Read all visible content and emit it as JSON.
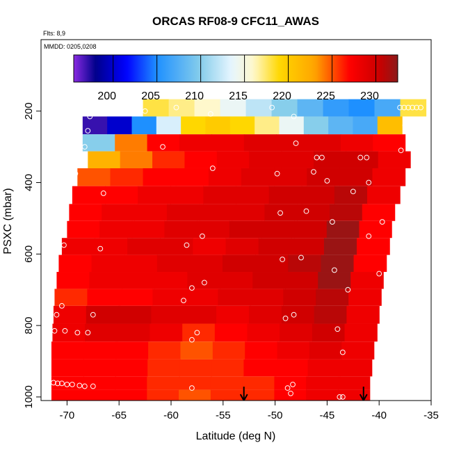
{
  "chart_data": {
    "type": "heatmap",
    "title": "ORCAS RF08-9 CFC11_AWAS",
    "notes": [
      "Flts: 8,9",
      "MMDD: 0205,0208"
    ],
    "xlabel": "Latitude (deg N)",
    "ylabel": "PSXC (mbar)",
    "xlim": [
      -72.5,
      -35
    ],
    "ylim": [
      1010,
      0
    ],
    "y_reversed": true,
    "xticks": [
      -70,
      -65,
      -60,
      -55,
      -50,
      -45,
      -40,
      -35
    ],
    "yticks": [
      200,
      400,
      600,
      800,
      1000
    ],
    "colorbar": {
      "range": [
        195.5,
        232.5
      ],
      "ticks": [
        200,
        205,
        210,
        215,
        220,
        225,
        230
      ],
      "palette_stops": [
        {
          "v": 195.5,
          "c": "#8a2be2"
        },
        {
          "v": 198.0,
          "c": "#00008b"
        },
        {
          "v": 201.5,
          "c": "#0000ff"
        },
        {
          "v": 205.0,
          "c": "#1e90ff"
        },
        {
          "v": 210.0,
          "c": "#87ceeb"
        },
        {
          "v": 213.5,
          "c": "#e6f5ff"
        },
        {
          "v": 216.0,
          "c": "#fff8cc"
        },
        {
          "v": 219.0,
          "c": "#ffd700"
        },
        {
          "v": 223.0,
          "c": "#ffa500"
        },
        {
          "v": 227.0,
          "c": "#ff0000"
        },
        {
          "v": 230.5,
          "c": "#c80000"
        },
        {
          "v": 232.5,
          "c": "#8b1a1a"
        }
      ]
    },
    "bands": [
      {
        "p": 190,
        "lat0": -62.7,
        "lat1": -35.5,
        "values": [
          218,
          217,
          216,
          214,
          212,
          210,
          208,
          206,
          205,
          207,
          218
        ]
      },
      {
        "p": 240,
        "lat0": -68.5,
        "lat1": -37.8,
        "values": [
          197,
          200,
          205,
          213,
          219,
          220,
          219,
          217,
          214,
          210,
          208,
          207,
          221
        ]
      },
      {
        "p": 290,
        "lat0": -68.5,
        "lat1": -37.5,
        "values": [
          210,
          224,
          227,
          228,
          228,
          229,
          229,
          229,
          228,
          227
        ]
      },
      {
        "p": 335,
        "lat0": -68.0,
        "lat1": -37.0,
        "values": [
          222,
          224,
          226,
          227,
          228,
          229,
          229,
          230,
          230,
          228
        ]
      },
      {
        "p": 385,
        "lat0": -69.0,
        "lat1": -37.5,
        "values": [
          225,
          226,
          227,
          227,
          228,
          229,
          229,
          230,
          230,
          228
        ]
      },
      {
        "p": 435,
        "lat0": -69.5,
        "lat1": -38.0,
        "values": [
          227,
          227,
          228,
          228,
          229,
          229,
          230,
          230,
          231,
          228
        ]
      },
      {
        "p": 485,
        "lat0": -69.8,
        "lat1": -38.5,
        "values": [
          227,
          228,
          228,
          229,
          229,
          229,
          230,
          230,
          231,
          227
        ]
      },
      {
        "p": 530,
        "lat0": -70.0,
        "lat1": -38.8,
        "values": [
          227,
          228,
          228,
          229,
          229,
          230,
          230,
          230,
          232,
          227
        ]
      },
      {
        "p": 580,
        "lat0": -70.5,
        "lat1": -39.0,
        "values": [
          228,
          228,
          229,
          229,
          228,
          229,
          230,
          230,
          232,
          227
        ]
      },
      {
        "p": 625,
        "lat0": -70.8,
        "lat1": -39.3,
        "values": [
          227,
          228,
          228,
          229,
          229,
          230,
          230,
          231,
          232,
          227
        ]
      },
      {
        "p": 675,
        "lat0": -71.0,
        "lat1": -39.6,
        "values": [
          227,
          228,
          228,
          228,
          229,
          229,
          230,
          230,
          232,
          228
        ]
      },
      {
        "p": 720,
        "lat0": -71.2,
        "lat1": -39.8,
        "values": [
          226,
          227,
          227,
          228,
          228,
          229,
          229,
          230,
          231,
          228
        ]
      },
      {
        "p": 770,
        "lat0": -71.3,
        "lat1": -40.0,
        "values": [
          228,
          230,
          230,
          229,
          229,
          228,
          229,
          230,
          231,
          228
        ]
      },
      {
        "p": 820,
        "lat0": -71.4,
        "lat1": -40.2,
        "values": [
          228,
          229,
          229,
          228,
          226,
          227,
          228,
          229,
          230,
          228
        ]
      },
      {
        "p": 870,
        "lat0": -71.5,
        "lat1": -40.5,
        "values": [
          227,
          227,
          227,
          226,
          225,
          226,
          227,
          228,
          229,
          228
        ]
      },
      {
        "p": 920,
        "lat0": -71.5,
        "lat1": -40.7,
        "values": [
          227,
          227,
          227,
          226,
          226,
          226,
          227,
          227,
          228,
          228
        ]
      },
      {
        "p": 965,
        "lat0": -71.5,
        "lat1": -40.9,
        "values": [
          227,
          227,
          227,
          226,
          226,
          226,
          226,
          227,
          228,
          228
        ]
      },
      {
        "p": 995,
        "lat0": -71.5,
        "lat1": -40.9,
        "values": [
          227,
          227,
          227,
          226,
          225,
          226,
          226,
          227,
          228,
          228
        ]
      }
    ],
    "samples": [
      {
        "lat": -67.8,
        "p": 215
      },
      {
        "lat": -62.5,
        "p": 200
      },
      {
        "lat": -59.5,
        "p": 190
      },
      {
        "lat": -56.2,
        "p": 208
      },
      {
        "lat": -50.3,
        "p": 190
      },
      {
        "lat": -48.2,
        "p": 215
      },
      {
        "lat": -38.0,
        "p": 190
      },
      {
        "lat": -37.6,
        "p": 190
      },
      {
        "lat": -37.2,
        "p": 190
      },
      {
        "lat": -36.8,
        "p": 190
      },
      {
        "lat": -36.4,
        "p": 190
      },
      {
        "lat": -36.0,
        "p": 190
      },
      {
        "lat": -68.0,
        "p": 255
      },
      {
        "lat": -37.5,
        "p": 240
      },
      {
        "lat": -68.3,
        "p": 300
      },
      {
        "lat": -60.8,
        "p": 300
      },
      {
        "lat": -48.0,
        "p": 290
      },
      {
        "lat": -37.9,
        "p": 310
      },
      {
        "lat": -46.0,
        "p": 330
      },
      {
        "lat": -45.5,
        "p": 330
      },
      {
        "lat": -41.8,
        "p": 330
      },
      {
        "lat": -41.2,
        "p": 330
      },
      {
        "lat": -69.2,
        "p": 375
      },
      {
        "lat": -56.0,
        "p": 360
      },
      {
        "lat": -49.8,
        "p": 375
      },
      {
        "lat": -46.3,
        "p": 370
      },
      {
        "lat": -45.0,
        "p": 395
      },
      {
        "lat": -41.0,
        "p": 400
      },
      {
        "lat": -66.5,
        "p": 430
      },
      {
        "lat": -42.5,
        "p": 425
      },
      {
        "lat": -49.5,
        "p": 485
      },
      {
        "lat": -47.0,
        "p": 480
      },
      {
        "lat": -44.5,
        "p": 510
      },
      {
        "lat": -39.7,
        "p": 510
      },
      {
        "lat": -70.8,
        "p": 575
      },
      {
        "lat": -70.3,
        "p": 575
      },
      {
        "lat": -66.8,
        "p": 585
      },
      {
        "lat": -58.5,
        "p": 575
      },
      {
        "lat": -57.0,
        "p": 550
      },
      {
        "lat": -41.0,
        "p": 550
      },
      {
        "lat": -38.5,
        "p": 570
      },
      {
        "lat": -49.3,
        "p": 615
      },
      {
        "lat": -47.5,
        "p": 610
      },
      {
        "lat": -44.3,
        "p": 645
      },
      {
        "lat": -40.0,
        "p": 655
      },
      {
        "lat": -58.0,
        "p": 695
      },
      {
        "lat": -56.8,
        "p": 680
      },
      {
        "lat": -43.0,
        "p": 700
      },
      {
        "lat": -58.8,
        "p": 730
      },
      {
        "lat": -70.5,
        "p": 745
      },
      {
        "lat": -71.0,
        "p": 770
      },
      {
        "lat": -67.5,
        "p": 770
      },
      {
        "lat": -49.0,
        "p": 780
      },
      {
        "lat": -48.2,
        "p": 770
      },
      {
        "lat": -72.0,
        "p": 815
      },
      {
        "lat": -71.2,
        "p": 815
      },
      {
        "lat": -70.2,
        "p": 815
      },
      {
        "lat": -69.0,
        "p": 820
      },
      {
        "lat": -68.0,
        "p": 820
      },
      {
        "lat": -57.5,
        "p": 820
      },
      {
        "lat": -58.0,
        "p": 840
      },
      {
        "lat": -44.0,
        "p": 810
      },
      {
        "lat": -39.8,
        "p": 825
      },
      {
        "lat": -43.5,
        "p": 875
      },
      {
        "lat": -39.0,
        "p": 910
      },
      {
        "lat": -71.3,
        "p": 960
      },
      {
        "lat": -70.9,
        "p": 962
      },
      {
        "lat": -70.5,
        "p": 962
      },
      {
        "lat": -70.0,
        "p": 965
      },
      {
        "lat": -69.5,
        "p": 965
      },
      {
        "lat": -68.8,
        "p": 968
      },
      {
        "lat": -68.3,
        "p": 970
      },
      {
        "lat": -67.5,
        "p": 970
      },
      {
        "lat": -58.0,
        "p": 975
      },
      {
        "lat": -48.8,
        "p": 975
      },
      {
        "lat": -48.3,
        "p": 965
      },
      {
        "lat": -48.5,
        "p": 990
      },
      {
        "lat": -43.8,
        "p": 1000
      },
      {
        "lat": -43.5,
        "p": 1000
      },
      {
        "lat": -40.5,
        "p": 1005
      }
    ],
    "markers": [
      {
        "type": "arrow-down",
        "lat": -53.0
      },
      {
        "type": "arrow-down",
        "lat": -41.5
      }
    ]
  }
}
